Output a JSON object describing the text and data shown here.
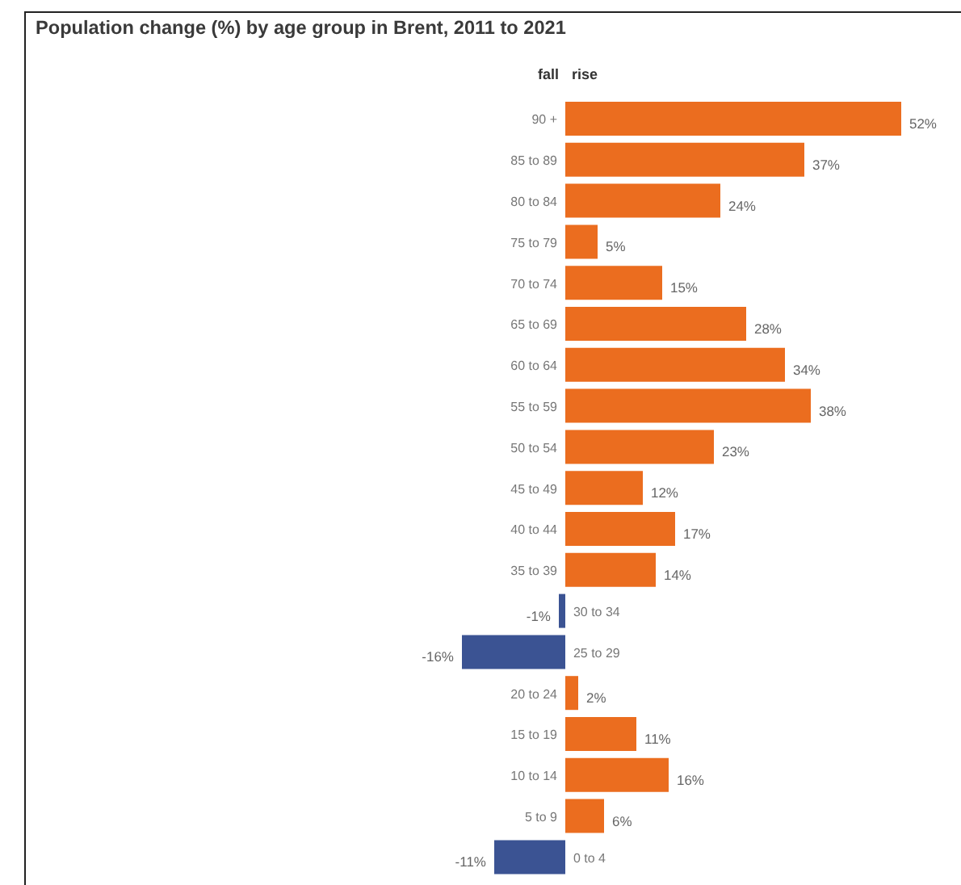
{
  "chart_data": {
    "type": "bar",
    "orientation": "horizontal",
    "title": "Population change (%) by age group in Brent, 2011 to 2021",
    "annotations": [
      "fall",
      "rise"
    ],
    "categories": [
      "90 +",
      "85 to 89",
      "80 to 84",
      "75 to 79",
      "70 to 74",
      "65 to 69",
      "60 to 64",
      "55 to 59",
      "50 to 54",
      "45 to 49",
      "40 to 44",
      "35 to 39",
      "30 to 34",
      "25 to 29",
      "20 to 24",
      "15 to 19",
      "10 to 14",
      "5 to 9",
      "0 to 4"
    ],
    "values": [
      52,
      37,
      24,
      5,
      15,
      28,
      34,
      38,
      23,
      12,
      17,
      14,
      -1,
      -16,
      2,
      11,
      16,
      6,
      -11
    ],
    "value_labels": [
      "52%",
      "37%",
      "24%",
      "5%",
      "15%",
      "28%",
      "34%",
      "38%",
      "23%",
      "12%",
      "17%",
      "14%",
      "-1%",
      "-16%",
      "2%",
      "11%",
      "16%",
      "6%",
      "-11%"
    ],
    "colors": [
      "#eb6d1f",
      "#eb6d1f",
      "#eb6d1f",
      "#eb6d1f",
      "#eb6d1f",
      "#eb6d1f",
      "#eb6d1f",
      "#eb6d1f",
      "#eb6d1f",
      "#eb6d1f",
      "#eb6d1f",
      "#eb6d1f",
      "#3b5393",
      "#3b5393",
      "#eb6d1f",
      "#eb6d1f",
      "#eb6d1f",
      "#eb6d1f",
      "#3b5393"
    ]
  }
}
